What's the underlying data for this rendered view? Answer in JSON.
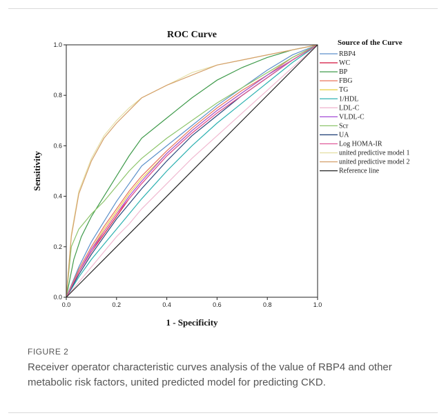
{
  "chart_data": {
    "type": "line",
    "title": "ROC Curve",
    "xlabel": "1 - Specificity",
    "ylabel": "Sensitivity",
    "xlim": [
      0,
      1
    ],
    "ylim": [
      0,
      1
    ],
    "xticks": [
      "0.0",
      "0.2",
      "0.4",
      "0.6",
      "0.8",
      "1.0"
    ],
    "yticks": [
      "0.0",
      "0.2",
      "0.4",
      "0.6",
      "0.8",
      "1.0"
    ],
    "grid": false,
    "legend_title": "Source of the Curve",
    "legend_position": "right",
    "series": [
      {
        "name": "RBP4",
        "color": "#5b8fc9",
        "x": [
          0,
          0.05,
          0.1,
          0.15,
          0.2,
          0.25,
          0.3,
          0.4,
          0.5,
          0.6,
          0.7,
          0.8,
          0.9,
          1
        ],
        "y": [
          0,
          0.12,
          0.22,
          0.3,
          0.38,
          0.45,
          0.52,
          0.6,
          0.68,
          0.76,
          0.83,
          0.9,
          0.96,
          1
        ]
      },
      {
        "name": "WC",
        "color": "#d6234a",
        "x": [
          0,
          0.05,
          0.1,
          0.15,
          0.2,
          0.25,
          0.3,
          0.4,
          0.5,
          0.6,
          0.7,
          0.8,
          0.9,
          1
        ],
        "y": [
          0,
          0.1,
          0.18,
          0.25,
          0.32,
          0.39,
          0.45,
          0.56,
          0.65,
          0.73,
          0.8,
          0.87,
          0.94,
          1
        ]
      },
      {
        "name": "BP",
        "color": "#3e9a4a",
        "x": [
          0,
          0.03,
          0.06,
          0.1,
          0.15,
          0.2,
          0.25,
          0.3,
          0.4,
          0.5,
          0.6,
          0.7,
          0.8,
          0.9,
          1
        ],
        "y": [
          0,
          0.15,
          0.24,
          0.32,
          0.4,
          0.48,
          0.56,
          0.63,
          0.71,
          0.79,
          0.86,
          0.91,
          0.95,
          0.98,
          1
        ]
      },
      {
        "name": "FBG",
        "color": "#e8735a",
        "x": [
          0,
          0.05,
          0.1,
          0.15,
          0.2,
          0.25,
          0.3,
          0.4,
          0.5,
          0.6,
          0.7,
          0.8,
          0.9,
          1
        ],
        "y": [
          0,
          0.11,
          0.2,
          0.28,
          0.35,
          0.42,
          0.48,
          0.58,
          0.67,
          0.75,
          0.82,
          0.88,
          0.95,
          1
        ]
      },
      {
        "name": "TG",
        "color": "#e8d24a",
        "x": [
          0,
          0.05,
          0.1,
          0.15,
          0.2,
          0.25,
          0.3,
          0.4,
          0.5,
          0.6,
          0.7,
          0.8,
          0.9,
          1
        ],
        "y": [
          0,
          0.1,
          0.19,
          0.27,
          0.34,
          0.41,
          0.47,
          0.57,
          0.66,
          0.74,
          0.81,
          0.88,
          0.94,
          1
        ]
      },
      {
        "name": "1/HDL",
        "color": "#2bb0b0",
        "x": [
          0,
          0.05,
          0.1,
          0.15,
          0.2,
          0.25,
          0.3,
          0.4,
          0.5,
          0.6,
          0.7,
          0.8,
          0.9,
          1
        ],
        "y": [
          0,
          0.08,
          0.15,
          0.21,
          0.27,
          0.33,
          0.39,
          0.5,
          0.6,
          0.69,
          0.77,
          0.85,
          0.93,
          1
        ]
      },
      {
        "name": "LDL-C",
        "color": "#f0b8d0",
        "x": [
          0,
          0.05,
          0.1,
          0.15,
          0.2,
          0.25,
          0.3,
          0.4,
          0.5,
          0.6,
          0.7,
          0.8,
          0.9,
          1
        ],
        "y": [
          0,
          0.06,
          0.12,
          0.18,
          0.24,
          0.29,
          0.35,
          0.45,
          0.55,
          0.64,
          0.73,
          0.82,
          0.91,
          1
        ]
      },
      {
        "name": "VLDL-C",
        "color": "#a24ad6",
        "x": [
          0,
          0.05,
          0.1,
          0.15,
          0.2,
          0.25,
          0.3,
          0.4,
          0.5,
          0.6,
          0.7,
          0.8,
          0.9,
          1
        ],
        "y": [
          0,
          0.1,
          0.19,
          0.26,
          0.33,
          0.4,
          0.46,
          0.57,
          0.66,
          0.74,
          0.81,
          0.88,
          0.94,
          1
        ]
      },
      {
        "name": "Scr",
        "color": "#8cc46a",
        "x": [
          0,
          0.02,
          0.05,
          0.1,
          0.15,
          0.2,
          0.25,
          0.3,
          0.4,
          0.5,
          0.6,
          0.7,
          0.8,
          0.9,
          1
        ],
        "y": [
          0,
          0.2,
          0.27,
          0.33,
          0.38,
          0.44,
          0.5,
          0.55,
          0.63,
          0.7,
          0.77,
          0.83,
          0.89,
          0.95,
          1
        ]
      },
      {
        "name": "UA",
        "color": "#27457a",
        "x": [
          0,
          0.05,
          0.1,
          0.15,
          0.2,
          0.25,
          0.3,
          0.4,
          0.5,
          0.6,
          0.7,
          0.8,
          0.9,
          1
        ],
        "y": [
          0,
          0.09,
          0.17,
          0.24,
          0.31,
          0.37,
          0.43,
          0.54,
          0.64,
          0.72,
          0.8,
          0.87,
          0.94,
          1
        ]
      },
      {
        "name": "Log HOMA-IR",
        "color": "#e05a9a",
        "x": [
          0,
          0.05,
          0.1,
          0.15,
          0.2,
          0.25,
          0.3,
          0.4,
          0.5,
          0.6,
          0.7,
          0.8,
          0.9,
          1
        ],
        "y": [
          0,
          0.1,
          0.18,
          0.26,
          0.33,
          0.39,
          0.45,
          0.56,
          0.65,
          0.73,
          0.8,
          0.87,
          0.94,
          1
        ]
      },
      {
        "name": "united predictive model 1",
        "color": "#e6e0a8",
        "x": [
          0,
          0.02,
          0.05,
          0.1,
          0.15,
          0.2,
          0.25,
          0.3,
          0.4,
          0.5,
          0.6,
          0.7,
          0.8,
          0.9,
          1
        ],
        "y": [
          0,
          0.25,
          0.42,
          0.55,
          0.64,
          0.7,
          0.75,
          0.79,
          0.84,
          0.89,
          0.92,
          0.94,
          0.96,
          0.98,
          1
        ]
      },
      {
        "name": "united predictive model 2",
        "color": "#d4a06a",
        "x": [
          0,
          0.02,
          0.05,
          0.1,
          0.15,
          0.2,
          0.25,
          0.3,
          0.4,
          0.5,
          0.6,
          0.7,
          0.8,
          0.9,
          1
        ],
        "y": [
          0,
          0.24,
          0.41,
          0.54,
          0.63,
          0.69,
          0.74,
          0.79,
          0.84,
          0.88,
          0.92,
          0.94,
          0.96,
          0.98,
          1
        ]
      },
      {
        "name": "Reference line",
        "color": "#222222",
        "x": [
          0,
          1
        ],
        "y": [
          0,
          1
        ]
      }
    ]
  },
  "caption": {
    "label": "FIGURE 2",
    "text": "Receiver operator characteristic curves analysis of the value of RBP4 and other metabolic risk factors, united predicted model for predicting CKD."
  }
}
